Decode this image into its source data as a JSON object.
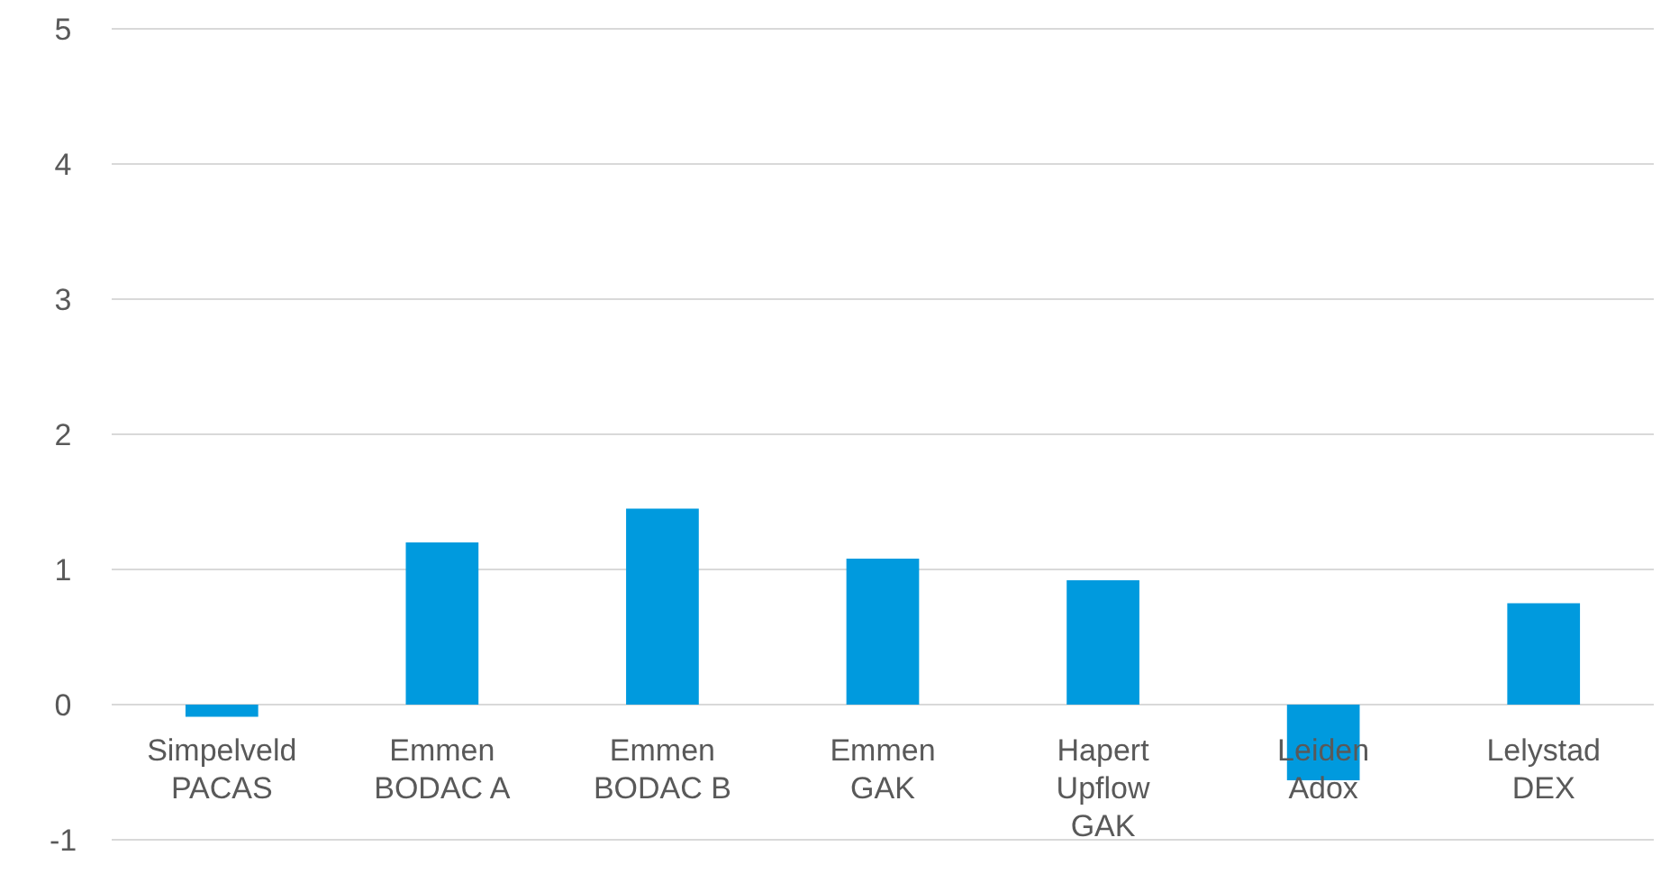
{
  "chart_data": {
    "type": "bar",
    "categories": [
      "Simpelveld\nPACAS",
      "Emmen\nBODAC A",
      "Emmen\nBODAC B",
      "Emmen\nGAK",
      "Hapert\nUpflow\nGAK",
      "Leiden\nAdox",
      "Lelystad\nDEX"
    ],
    "values": [
      -0.09,
      1.2,
      1.45,
      1.08,
      0.92,
      -0.56,
      0.75
    ],
    "color": "#009ade",
    "ylim": [
      -1,
      5
    ],
    "yticks": [
      -1,
      0,
      1,
      2,
      3,
      4,
      5
    ],
    "grid": "y"
  }
}
